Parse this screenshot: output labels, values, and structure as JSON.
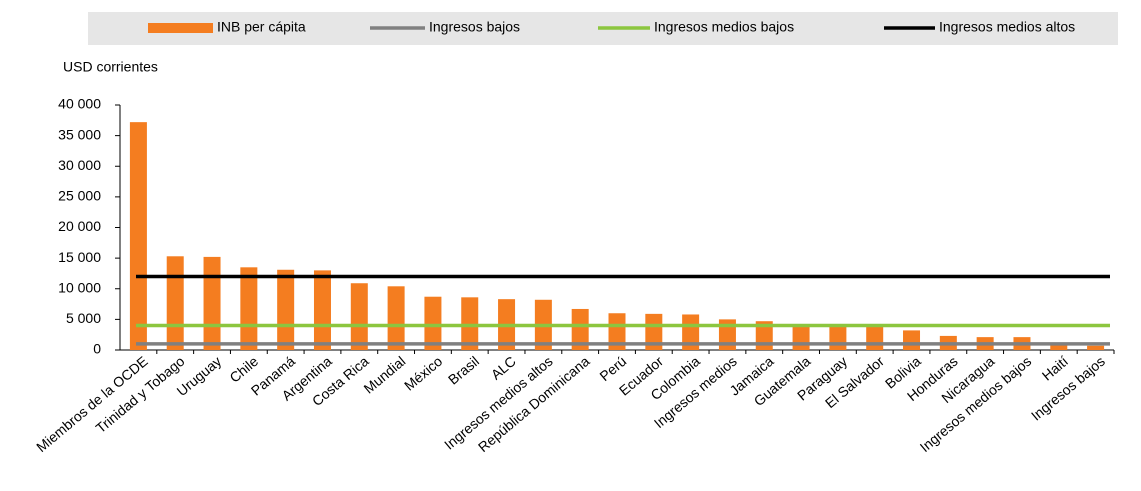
{
  "chart_data": {
    "type": "bar",
    "y_axis_label": "USD corrientes",
    "categories": [
      "Miembros de la OCDE",
      "Trinidad y Tobago",
      "Uruguay",
      "Chile",
      "Panamá",
      "Argentina",
      "Costa Rica",
      "Mundial",
      "México",
      "Brasil",
      "ALC",
      "Ingresos medios altos",
      "República Dominicana",
      "Perú",
      "Ecuador",
      "Colombia",
      "Ingresos medios",
      "Jamaica",
      "Guatemala",
      "Paraguay",
      "El Salvador",
      "Bolivia",
      "Honduras",
      "Nicaragua",
      "Ingresos medios bajos",
      "Haití",
      "Ingresos bajos"
    ],
    "series": [
      {
        "name": "INB per cápita",
        "color": "#f47d20",
        "values": [
          37200,
          15300,
          15200,
          13500,
          13100,
          13000,
          10900,
          10400,
          8700,
          8600,
          8300,
          8200,
          6700,
          6000,
          5900,
          5800,
          5000,
          4700,
          3900,
          3900,
          3900,
          3200,
          2300,
          2100,
          2100,
          800,
          700
        ]
      },
      {
        "name": "Ingresos bajos",
        "color": "#808080",
        "value": 1000
      },
      {
        "name": "Ingresos medios bajos",
        "color": "#8cc63f",
        "value": 4000
      },
      {
        "name": "Ingresos medios altos",
        "color": "#000000",
        "value": 12000
      }
    ],
    "ylim": [
      0,
      40000
    ],
    "yticks": [
      0,
      {
        "value": 5000,
        "label": "5 000"
      },
      {
        "value": 10000,
        "label": "10 000"
      },
      {
        "value": 15000,
        "label": "15 000"
      },
      {
        "value": 20000,
        "label": "20 000"
      },
      {
        "value": 25000,
        "label": "25 000"
      },
      {
        "value": 30000,
        "label": "30 000"
      },
      {
        "value": 35000,
        "label": "35 000"
      },
      {
        "value": 40000,
        "label": "40 000"
      }
    ]
  }
}
